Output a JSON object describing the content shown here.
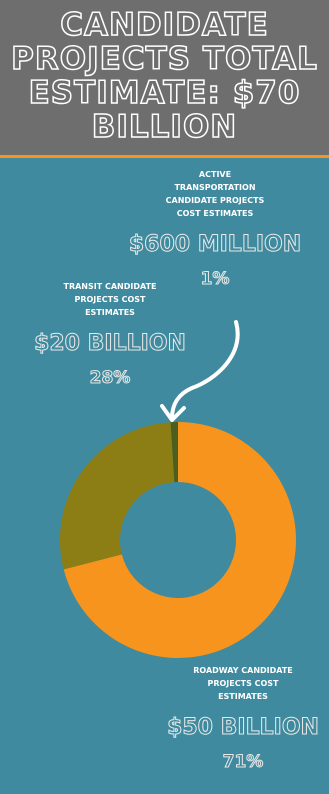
{
  "chart_data": {
    "type": "pie",
    "donut": true,
    "title": "CANDIDATE PROJECTS TOTAL ESTIMATE: $70 BILLION",
    "categories": [
      "ROADWAY CANDIDATE PROJECTS COST ESTIMATES",
      "TRANSIT CANDIDATE PROJECTS COST ESTIMATES",
      "ACTIVE TRANSPORTATION CANDIDATE PROJECTS COST ESTIMATES"
    ],
    "values": [
      71,
      28,
      1
    ],
    "value_labels": [
      "71%",
      "28%",
      "1%"
    ],
    "amount_labels": [
      "$50 BILLION",
      "$20 BILLION",
      "$600 MILLION"
    ],
    "colors": [
      "#f7941d",
      "#8c7d14",
      "#4b5e1e"
    ]
  }
}
